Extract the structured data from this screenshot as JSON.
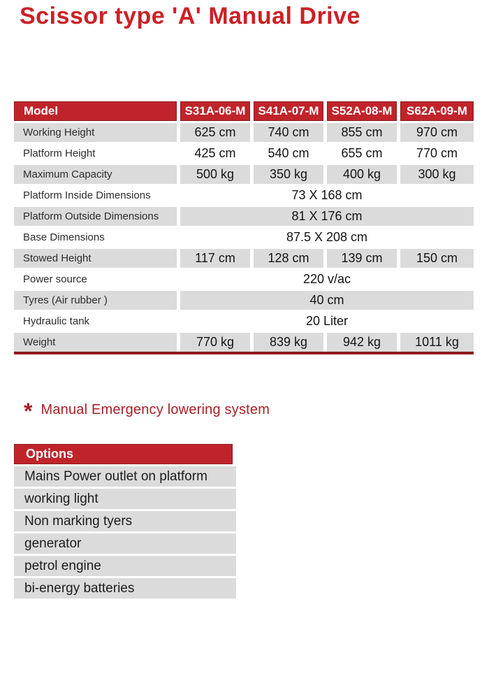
{
  "title": "Scissor type 'A' Manual Drive",
  "colors": {
    "header_red": "#c0242b",
    "header_border_red": "#8d171b",
    "title_red": "#cb2127",
    "note_red": "#a82025",
    "row_gray": "#dbdbdb",
    "divider_red": "#9b1b1f"
  },
  "spec_table": {
    "header": {
      "label": "Model",
      "models": [
        "S31A-06-M",
        "S41A-07-M",
        "S52A-08-M",
        "S62A-09-M"
      ]
    },
    "rows": [
      {
        "label": "Working Height",
        "values": [
          "625 cm",
          "740 cm",
          "855 cm",
          "970 cm"
        ]
      },
      {
        "label": "Platform Height",
        "values": [
          "425 cm",
          "540 cm",
          "655 cm",
          "770 cm"
        ]
      },
      {
        "label": "Maximum Capacity",
        "values": [
          "500 kg",
          "350 kg",
          "400 kg",
          "300 kg"
        ]
      },
      {
        "label": "Platform Inside Dimensions",
        "span_value": "73 X 168 cm"
      },
      {
        "label": "Platform Outside Dimensions",
        "span_value": "81 X 176 cm"
      },
      {
        "label": "Base Dimensions",
        "span_value": "87.5 X 208 cm"
      },
      {
        "label": "Stowed Height",
        "values": [
          "117 cm",
          "128 cm",
          "139 cm",
          "150 cm"
        ]
      },
      {
        "label": "Power source",
        "span_value": "220 v/ac"
      },
      {
        "label": "Tyres (Air rubber )",
        "span_value": "40 cm"
      },
      {
        "label": "Hydraulic tank",
        "span_value": "20 Liter"
      },
      {
        "label": "Weight",
        "values": [
          "770 kg",
          "839 kg",
          "942 kg",
          "1011 kg"
        ]
      }
    ]
  },
  "note": {
    "marker": "*",
    "text": "Manual Emergency lowering system"
  },
  "options": {
    "header": "Options",
    "items": [
      "Mains Power outlet on platform",
      "working light",
      "Non marking tyers",
      "generator",
      "petrol engine",
      "bi-energy batteries"
    ]
  }
}
